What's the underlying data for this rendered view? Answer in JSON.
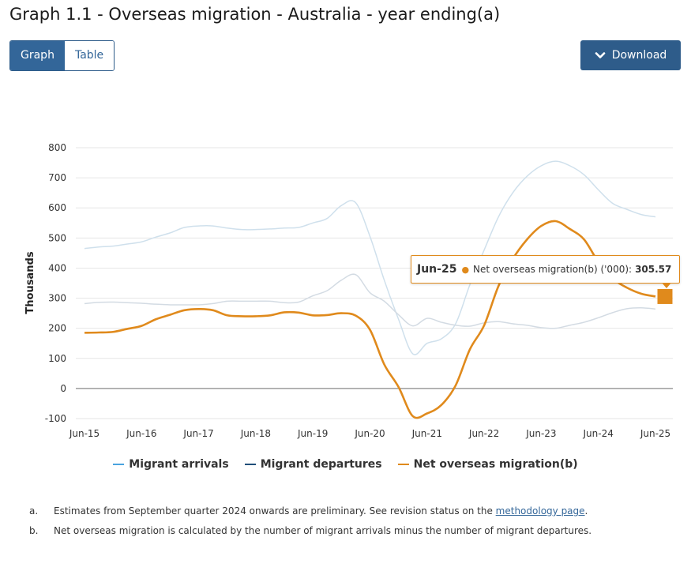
{
  "title": "Graph 1.1 - Overseas migration - Australia - year ending(a)",
  "toggle": {
    "graph_label": "Graph",
    "table_label": "Table"
  },
  "download_label": "Download",
  "colors": {
    "arrivals": "#cfe0ec",
    "departures": "#d3dbe3",
    "net": "#e08a1c",
    "accent": "#2e5c8a"
  },
  "chart_data": {
    "type": "line",
    "ylabel": "Thousands",
    "ylim": [
      -100,
      800
    ],
    "yticks": [
      -100,
      0,
      100,
      200,
      300,
      400,
      500,
      600,
      700,
      800
    ],
    "xtick_labels": [
      "Jun-15",
      "Jun-16",
      "Jun-17",
      "Jun-18",
      "Jun-19",
      "Jun-20",
      "Jun-21",
      "Jun-22",
      "Jun-23",
      "Jun-24",
      "Jun-25"
    ],
    "x": [
      "Jun-15",
      "Sep-15",
      "Dec-15",
      "Mar-16",
      "Jun-16",
      "Sep-16",
      "Dec-16",
      "Mar-17",
      "Jun-17",
      "Sep-17",
      "Dec-17",
      "Mar-18",
      "Jun-18",
      "Sep-18",
      "Dec-18",
      "Mar-19",
      "Jun-19",
      "Sep-19",
      "Dec-19",
      "Mar-20",
      "Jun-20",
      "Sep-20",
      "Dec-20",
      "Mar-21",
      "Jun-21",
      "Sep-21",
      "Dec-21",
      "Mar-22",
      "Jun-22",
      "Sep-22",
      "Dec-22",
      "Mar-23",
      "Jun-23",
      "Sep-23",
      "Dec-23",
      "Mar-24",
      "Jun-24",
      "Sep-24",
      "Dec-24",
      "Mar-25",
      "Jun-25"
    ],
    "grid": true,
    "series": [
      {
        "name": "Migrant arrivals",
        "values": [
          465,
          470,
          473,
          480,
          487,
          503,
          517,
          535,
          540,
          540,
          533,
          528,
          528,
          530,
          533,
          535,
          550,
          565,
          608,
          617,
          505,
          360,
          230,
          115,
          150,
          165,
          215,
          345,
          460,
          570,
          650,
          705,
          740,
          755,
          740,
          710,
          660,
          615,
          595,
          578,
          570
        ]
      },
      {
        "name": "Migrant departures",
        "values": [
          282,
          286,
          287,
          285,
          283,
          280,
          278,
          278,
          278,
          282,
          290,
          290,
          290,
          290,
          285,
          287,
          308,
          325,
          360,
          378,
          318,
          290,
          245,
          208,
          233,
          220,
          210,
          207,
          218,
          222,
          215,
          210,
          202,
          200,
          210,
          220,
          235,
          252,
          265,
          268,
          264
        ]
      },
      {
        "name": "Net overseas migration(b)",
        "values": [
          185,
          186,
          188,
          198,
          208,
          230,
          245,
          260,
          264,
          260,
          243,
          240,
          240,
          243,
          253,
          252,
          243,
          244,
          250,
          242,
          195,
          80,
          5,
          -92,
          -83,
          -55,
          10,
          130,
          210,
          340,
          430,
          495,
          540,
          556,
          530,
          495,
          420,
          365,
          335,
          315,
          305.57
        ]
      }
    ],
    "legend_position": "bottom"
  },
  "tooltip": {
    "date": "Jun-25",
    "label": "Net overseas migration(b) ('000):",
    "value": "305.57"
  },
  "notes": [
    {
      "mark": "a.",
      "text_before": "Estimates from September quarter 2024 onwards are preliminary. See revision status on the ",
      "link_text": "methodology page",
      "text_after": "."
    },
    {
      "mark": "b.",
      "text": "Net overseas migration is calculated by the number of migrant arrivals minus the number of migrant departures."
    }
  ]
}
